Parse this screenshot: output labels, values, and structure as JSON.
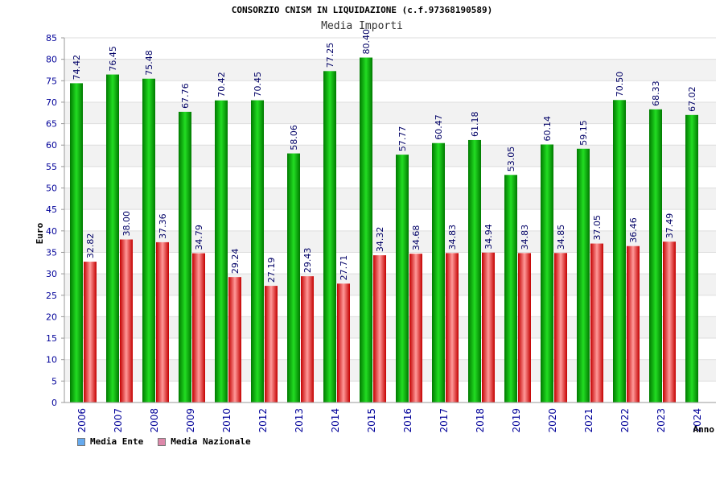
{
  "title": "CONSORZIO CNISM IN LIQUIDAZIONE (c.f.97368190589)",
  "subtitle": "Media Importi",
  "colors": {
    "ente": "#00bb00",
    "nazionale": "#ee1111",
    "ente_legend": "#66aaee",
    "nazionale_legend": "#dd88aa",
    "axis_text": "#000099"
  },
  "legend": {
    "ente": "Media Ente",
    "nazionale": "Media Nazionale"
  },
  "chart_data": {
    "type": "bar",
    "ylabel": "Euro",
    "xlabel": "Anno",
    "ylim": [
      0,
      85
    ],
    "ytick_step": 5,
    "grid": true,
    "legend_position": "bottom-left",
    "categories": [
      "2006",
      "2007",
      "2008",
      "2009",
      "2010",
      "2012",
      "2013",
      "2014",
      "2015",
      "2016",
      "2017",
      "2018",
      "2019",
      "2020",
      "2021",
      "2022",
      "2023",
      "2024"
    ],
    "series": [
      {
        "name": "Media Ente",
        "values": [
          74.42,
          76.45,
          75.48,
          67.76,
          70.42,
          70.45,
          58.06,
          77.25,
          80.4,
          57.77,
          60.47,
          61.18,
          53.05,
          60.14,
          59.15,
          70.5,
          68.33,
          67.02
        ],
        "labels": [
          "74.42",
          "76.45",
          "75.48",
          "67.76",
          "70.42",
          "70.45",
          "58.06",
          "77.25",
          "80.40",
          "57.77",
          "60.47",
          "61.18",
          "53.05",
          "60.14",
          "59.15",
          "70.50",
          "68.33",
          "67.02"
        ]
      },
      {
        "name": "Media Nazionale",
        "values": [
          32.82,
          38.0,
          37.36,
          34.79,
          29.24,
          27.19,
          29.43,
          27.71,
          34.32,
          34.68,
          34.83,
          34.94,
          34.83,
          34.85,
          37.05,
          36.46,
          37.49,
          null
        ],
        "labels": [
          "32.82",
          "38.00",
          "37.36",
          "34.79",
          "29.24",
          "27.19",
          "29.43",
          "27.71",
          "34.32",
          "34.68",
          "34.83",
          "34.94",
          "34.83",
          "34.85",
          "37.05",
          "36.46",
          "37.49",
          ""
        ]
      }
    ]
  }
}
